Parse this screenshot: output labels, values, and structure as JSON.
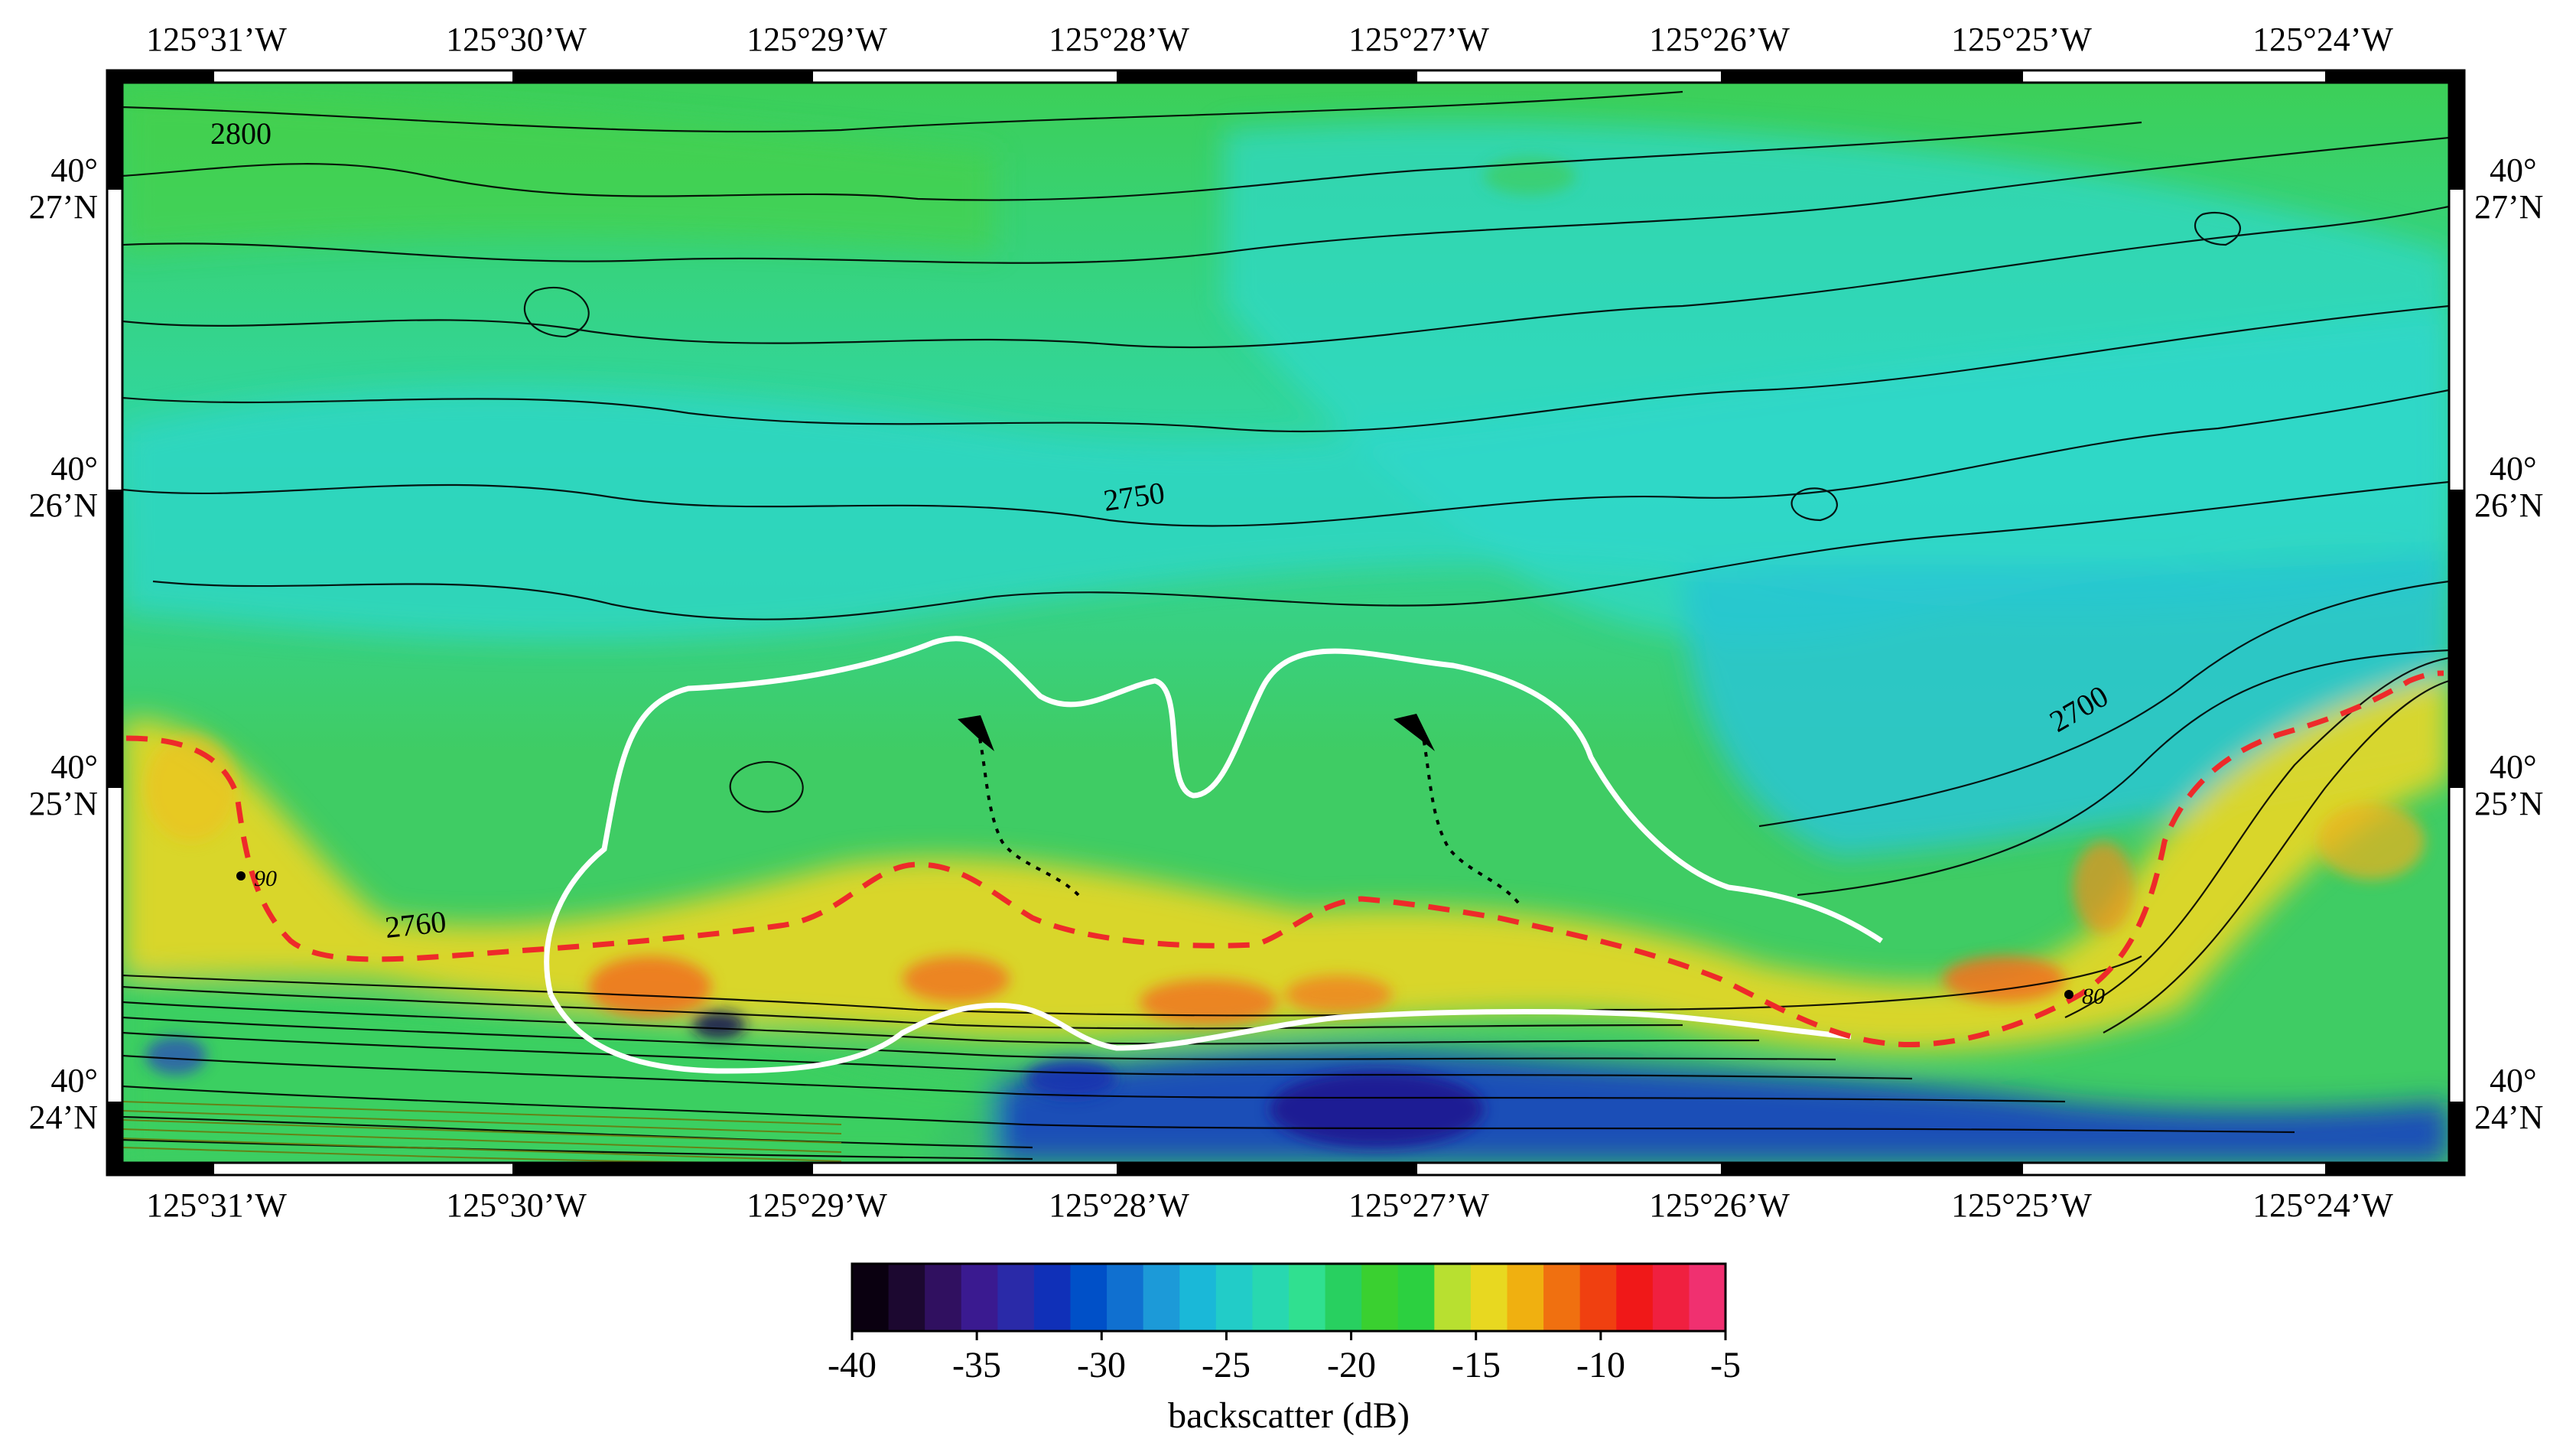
{
  "map": {
    "lon_labels": [
      "125°31’W",
      "125°30’W",
      "125°29’W",
      "125°28’W",
      "125°27’W",
      "125°26’W",
      "125°25’W",
      "125°24’W"
    ],
    "lat_labels": [
      {
        "deg": "40°",
        "min": "27’N"
      },
      {
        "deg": "40°",
        "min": "26’N"
      },
      {
        "deg": "40°",
        "min": "25’N"
      },
      {
        "deg": "40°",
        "min": "24’N"
      }
    ],
    "contour_labels": [
      "2800",
      "2750",
      "2760",
      "2700"
    ],
    "point_labels": [
      "90",
      "80"
    ]
  },
  "colorbar": {
    "title": "backscatter (dB)",
    "ticks": [
      "-40",
      "-35",
      "-30",
      "-25",
      "-20",
      "-15",
      "-10",
      "-5"
    ],
    "colors": [
      "#0a0010",
      "#1c0830",
      "#301060",
      "#3a1a90",
      "#2a2aa8",
      "#1030b8",
      "#0050c8",
      "#1070d0",
      "#1c9ad8",
      "#1ab8d8",
      "#22ccc8",
      "#28d8b0",
      "#30e090",
      "#28d060",
      "#3ad030",
      "#2cd040",
      "#b8e030",
      "#e8d820",
      "#f0b010",
      "#f07010",
      "#f04010",
      "#f01818",
      "#f02040",
      "#f03070"
    ]
  },
  "colors": {
    "ridge_line": "#ee2a2a",
    "outline": "#ffffff",
    "contour": "#000000"
  }
}
